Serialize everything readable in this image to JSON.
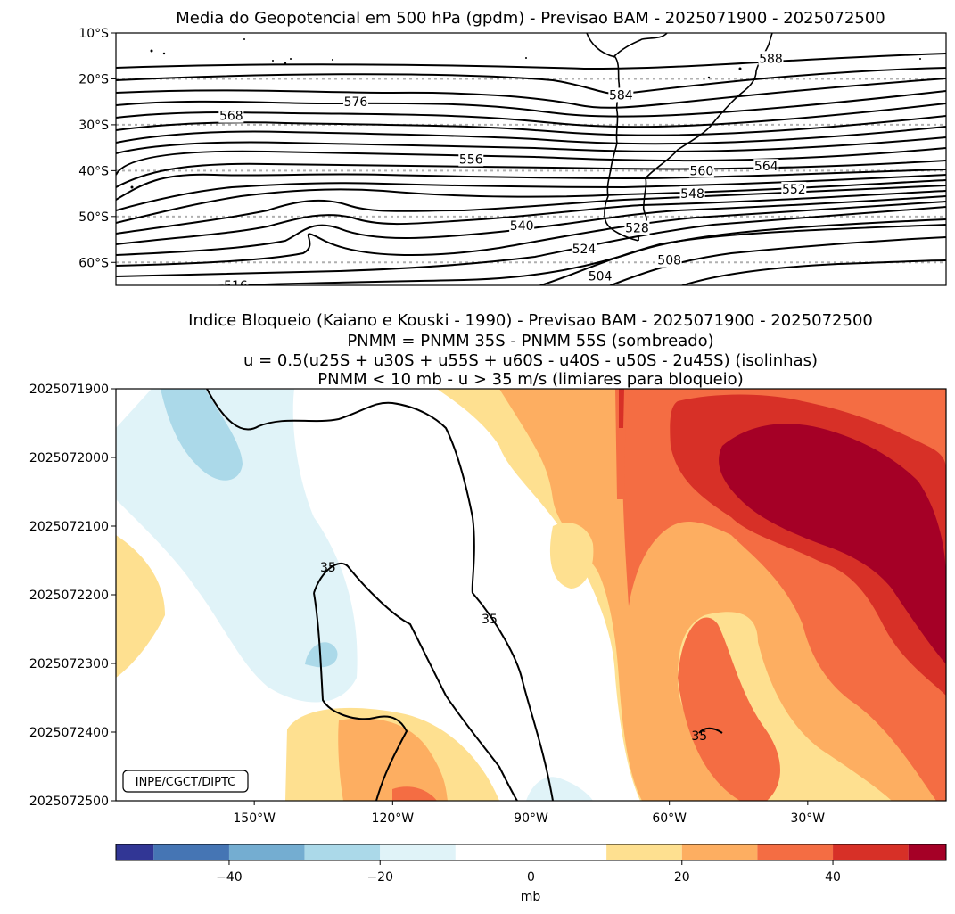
{
  "chart_data": [
    {
      "type": "contour-map",
      "title": "Media do Geopotencial em 500 hPa (gpdm) - Previsao BAM - 2025071900 - 2025072500",
      "y_ticks": [
        "10°S",
        "20°S",
        "30°S",
        "40°S",
        "50°S",
        "60°S"
      ],
      "ylim": [
        -65,
        -10
      ],
      "gridlines": "dotted",
      "contour_labels": [
        {
          "value": "588",
          "lon": -38,
          "lat": -15.5
        },
        {
          "value": "584",
          "lon": -70.5,
          "lat": -23.5
        },
        {
          "value": "576",
          "lon": -128,
          "lat": -25
        },
        {
          "value": "568",
          "lon": -155,
          "lat": -28
        },
        {
          "value": "556",
          "lon": -103,
          "lat": -37.5
        },
        {
          "value": "560",
          "lon": -53,
          "lat": -40
        },
        {
          "value": "564",
          "lon": -39,
          "lat": -39
        },
        {
          "value": "552",
          "lon": -33,
          "lat": -44
        },
        {
          "value": "548",
          "lon": -55,
          "lat": -45
        },
        {
          "value": "540",
          "lon": -92,
          "lat": -52
        },
        {
          "value": "528",
          "lon": -67,
          "lat": -52.5
        },
        {
          "value": "524",
          "lon": -78.5,
          "lat": -57
        },
        {
          "value": "508",
          "lon": -60,
          "lat": -59.5
        },
        {
          "value": "504",
          "lon": -75,
          "lat": -63
        },
        {
          "value": "516",
          "lon": -154,
          "lat": -65
        }
      ]
    },
    {
      "type": "heatmap",
      "title_lines": [
        "Indice Bloqueio (Kaiano e Kouski - 1990) - Previsao BAM - 2025071900 - 2025072500",
        "PNMM = PNMM 35S - PNMM 55S (sombreado)",
        "u = 0.5(u25S + u30S + u55S + u60S - u40S - u50S - 2u45S) (isolinhas)",
        "PNMM < 10 mb - u > 35 m/s (limiares para bloqueio)"
      ],
      "y_ticks": [
        "2025071900",
        "2025072000",
        "2025072100",
        "2025072200",
        "2025072300",
        "2025072400",
        "2025072500"
      ],
      "x_ticks": [
        "150°W",
        "120°W",
        "90°W",
        "60°W",
        "30°W"
      ],
      "xlim": [
        -180,
        0
      ],
      "contour_labels": [
        {
          "value": "35",
          "lon": -134,
          "time_index": 2.6
        },
        {
          "value": "35",
          "lon": -99,
          "time_index": 3.35
        },
        {
          "value": "35",
          "lon": -53.5,
          "time_index": 5.05
        }
      ],
      "credit": "INPE/CGCT/DIPTC"
    },
    {
      "type": "colorbar",
      "label": "mb",
      "ticks": [
        "−40",
        "−20",
        "0",
        "20",
        "40"
      ],
      "tick_values": [
        -40,
        -20,
        0,
        20,
        40
      ],
      "vmin": -55,
      "vmax": 55,
      "levels": [
        -55,
        -50,
        -40,
        -30,
        -20,
        -10,
        0,
        10,
        20,
        30,
        40,
        50,
        55
      ],
      "colors": [
        "#313695",
        "#4575b4",
        "#74add1",
        "#abd9e9",
        "#e0f3f8",
        "#ffffff",
        "#ffffff",
        "#fee090",
        "#fdae61",
        "#f46d43",
        "#d73027",
        "#a50026"
      ]
    }
  ]
}
